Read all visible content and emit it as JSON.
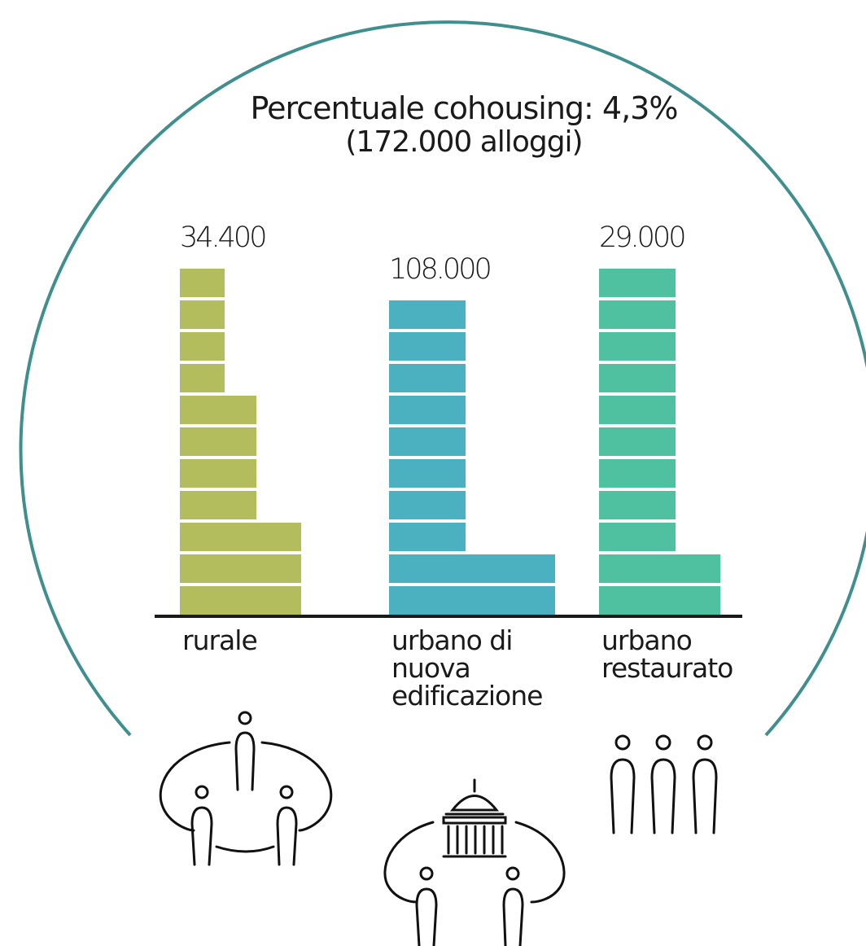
{
  "title": {
    "line1_text": "Percentuale cohousing:",
    "line1_value": "4,3%",
    "line2": "(172.000 alloggi)"
  },
  "chart_data": {
    "type": "bar",
    "categories": [
      "rurale",
      "urbano di\nnuova\nedificazione",
      "urbano\nrestaurato"
    ],
    "values": [
      34400,
      108000,
      29000
    ],
    "value_labels": [
      "34.400",
      "108.000",
      "29.000"
    ],
    "bar_stacks": [
      {
        "category": "rurale",
        "tiers": [
          {
            "width_units": 1,
            "blocks": 4
          },
          {
            "width_units": 1.7,
            "blocks": 4
          },
          {
            "width_units": 2.7,
            "blocks": 3
          }
        ]
      },
      {
        "category": "urbano di nuova edificazione",
        "tiers": [
          {
            "width_units": 1.7,
            "blocks": 8
          },
          {
            "width_units": 3.7,
            "blocks": 2
          }
        ]
      },
      {
        "category": "urbano restaurato",
        "tiers": [
          {
            "width_units": 1.7,
            "blocks": 9
          },
          {
            "width_units": 2.7,
            "blocks": 2
          }
        ]
      }
    ],
    "colors": [
      "#b3bd5e",
      "#4bb1c0",
      "#4fc0a0"
    ],
    "axis_color": "#1a1a1a",
    "arc_color": "#3f8f8e",
    "icons": [
      "community-round-table-icon",
      "community-building-table-icon",
      "three-people-icon"
    ]
  }
}
